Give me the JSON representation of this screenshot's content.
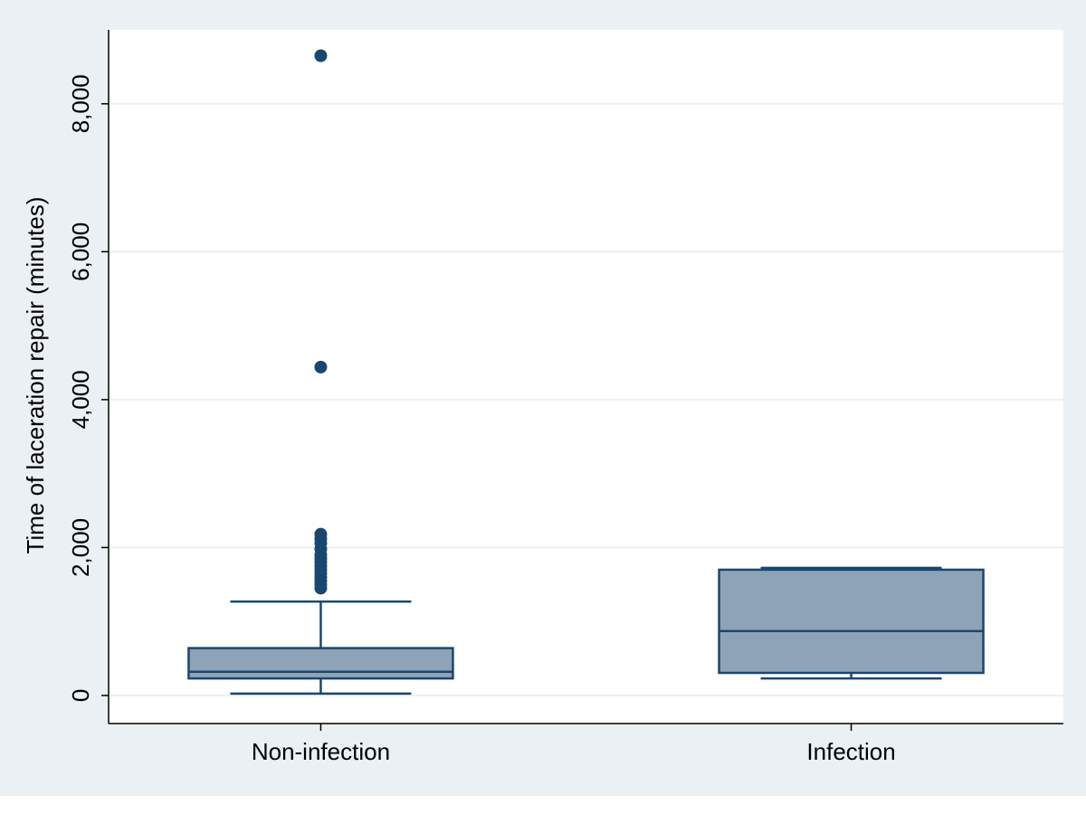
{
  "chart_data": {
    "type": "box",
    "y_label": "Time of laceration repair (minutes)",
    "categories": [
      "Non-infection",
      "Infection"
    ],
    "boxes": [
      {
        "min": 25,
        "q1": 230,
        "median": 320,
        "q3": 640,
        "max": 1270,
        "outliers": [
          8650,
          4440,
          2180,
          2120,
          2060,
          1980,
          1900,
          1850,
          1800,
          1750,
          1700,
          1650,
          1600,
          1550,
          1500,
          1450
        ]
      },
      {
        "min": 230,
        "q1": 305,
        "median": 870,
        "q3": 1700,
        "max": 1725,
        "outliers": []
      }
    ],
    "fill": "#8fa3b6",
    "color": "#1a476f",
    "ylim": [
      -380,
      9000
    ],
    "yticks": [
      {
        "value": 0,
        "label": "0"
      },
      {
        "value": 2000,
        "label": "2,000"
      },
      {
        "value": 4000,
        "label": "4,000"
      },
      {
        "value": 6000,
        "label": "6,000"
      },
      {
        "value": 8000,
        "label": "8,000"
      }
    ],
    "grid": true
  }
}
